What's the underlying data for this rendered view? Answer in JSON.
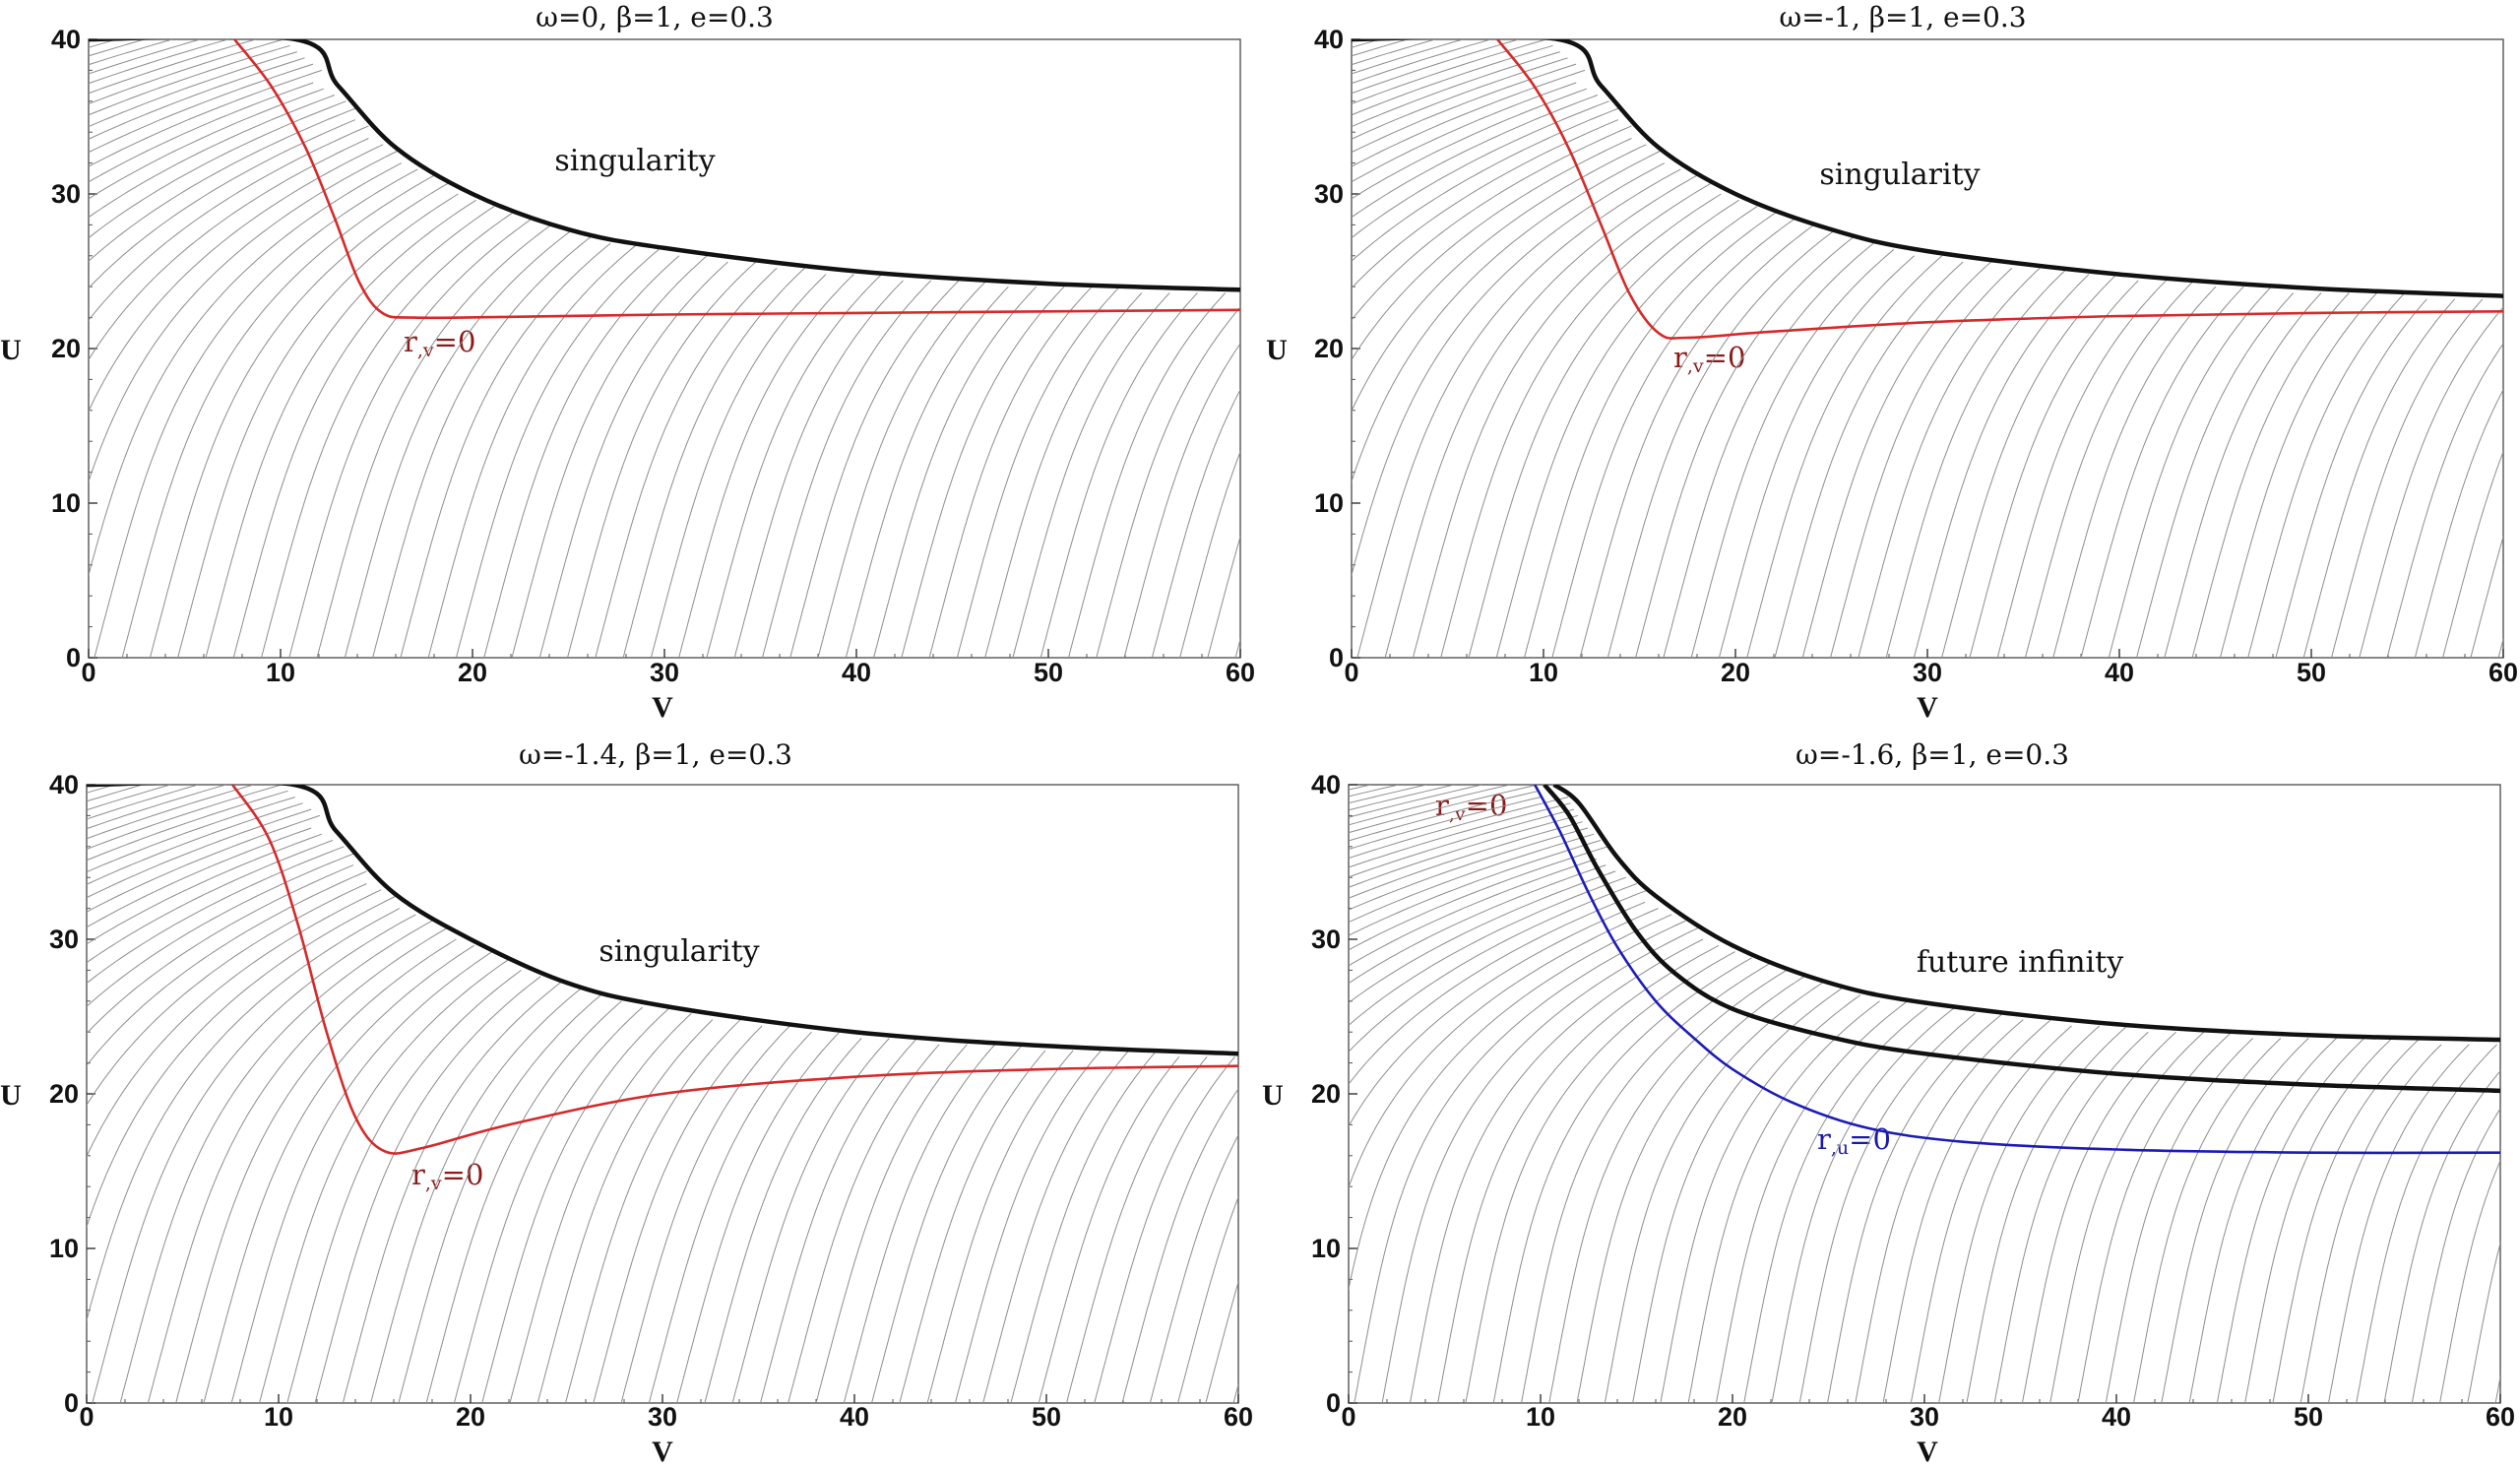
{
  "chart_data": [
    {
      "type": "line",
      "title": "ω=0,   β=1,   e=0.3",
      "xlabel": "V",
      "ylabel": "U",
      "xlim": [
        0,
        60
      ],
      "ylim": [
        0,
        40
      ],
      "xticks": [
        "0",
        "10",
        "20",
        "30",
        "40",
        "50",
        "60"
      ],
      "yticks": [
        "0",
        "10",
        "20",
        "30",
        "40"
      ],
      "region_label": "singularity",
      "curve_labels": [
        {
          "base": "r",
          "sub": ",v",
          "rest": "=0",
          "color": "#8b1a1a"
        }
      ],
      "series": [
        {
          "name": "r,v=0",
          "color": "#d42a2a",
          "points": [
            [
              7.6,
              40
            ],
            [
              9.5,
              37
            ],
            [
              11.3,
              33
            ],
            [
              12.8,
              28.5
            ],
            [
              14.1,
              24.3
            ],
            [
              15.3,
              22.3
            ],
            [
              17,
              22.0
            ],
            [
              22,
              22.05
            ],
            [
              30,
              22.2
            ],
            [
              40,
              22.3
            ],
            [
              50,
              22.4
            ],
            [
              60,
              22.5
            ]
          ]
        },
        {
          "name": "singularity boundary",
          "color": "#111111",
          "points": [
            [
              0,
              40
            ],
            [
              10.8,
              40
            ],
            [
              13,
              37
            ],
            [
              16,
              33
            ],
            [
              20,
              30
            ],
            [
              25,
              27.7
            ],
            [
              30,
              26.5
            ],
            [
              40,
              25
            ],
            [
              50,
              24.2
            ],
            [
              60,
              23.8
            ]
          ]
        }
      ]
    },
    {
      "type": "line",
      "title": "ω=-1,   β=1,   e=0.3",
      "xlabel": "V",
      "ylabel": "U",
      "xlim": [
        0,
        60
      ],
      "ylim": [
        0,
        40
      ],
      "xticks": [
        "0",
        "10",
        "20",
        "30",
        "40",
        "50",
        "60"
      ],
      "yticks": [
        "0",
        "10",
        "20",
        "30",
        "40"
      ],
      "region_label": "singularity",
      "curve_labels": [
        {
          "base": "r",
          "sub": ",v",
          "rest": "=0",
          "color": "#8b1a1a"
        }
      ],
      "series": [
        {
          "name": "r,v=0",
          "color": "#d42a2a",
          "points": [
            [
              7.6,
              40
            ],
            [
              9.5,
              37
            ],
            [
              11.3,
              33
            ],
            [
              13,
              28
            ],
            [
              14.5,
              23.5
            ],
            [
              16,
              21
            ],
            [
              17.5,
              20.7
            ],
            [
              22,
              21.1
            ],
            [
              30,
              21.7
            ],
            [
              40,
              22.1
            ],
            [
              50,
              22.3
            ],
            [
              60,
              22.4
            ]
          ]
        },
        {
          "name": "singularity boundary",
          "color": "#111111",
          "points": [
            [
              0,
              40
            ],
            [
              10.8,
              40
            ],
            [
              13,
              37
            ],
            [
              16,
              33
            ],
            [
              20,
              30
            ],
            [
              25,
              27.7
            ],
            [
              30,
              26.3
            ],
            [
              40,
              24.8
            ],
            [
              50,
              23.9
            ],
            [
              60,
              23.4
            ]
          ]
        }
      ]
    },
    {
      "type": "line",
      "title": "ω=-1.4,   β=1,   e=0.3",
      "xlabel": "V",
      "ylabel": "U",
      "xlim": [
        0,
        60
      ],
      "ylim": [
        0,
        40
      ],
      "xticks": [
        "0",
        "10",
        "20",
        "30",
        "40",
        "50",
        "60"
      ],
      "yticks": [
        "0",
        "10",
        "20",
        "30",
        "40"
      ],
      "region_label": "singularity",
      "curve_labels": [
        {
          "base": "r",
          "sub": ",v",
          "rest": "=0",
          "color": "#8b1a1a"
        }
      ],
      "series": [
        {
          "name": "r,v=0",
          "color": "#d42a2a",
          "points": [
            [
              7.6,
              40
            ],
            [
              9.5,
              36.5
            ],
            [
              11,
              31
            ],
            [
              12.5,
              24
            ],
            [
              14,
              18.5
            ],
            [
              15.5,
              16.3
            ],
            [
              17.5,
              16.5
            ],
            [
              22,
              18
            ],
            [
              30,
              20
            ],
            [
              40,
              21.1
            ],
            [
              50,
              21.6
            ],
            [
              60,
              21.8
            ]
          ]
        },
        {
          "name": "singularity boundary",
          "color": "#111111",
          "points": [
            [
              0,
              40
            ],
            [
              10.8,
              40
            ],
            [
              13,
              37
            ],
            [
              16,
              33
            ],
            [
              20,
              30
            ],
            [
              25,
              27.2
            ],
            [
              30,
              25.7
            ],
            [
              40,
              24
            ],
            [
              50,
              23.1
            ],
            [
              60,
              22.6
            ]
          ]
        }
      ]
    },
    {
      "type": "line",
      "title": "ω=-1.6,   β=1,   e=0.3",
      "xlabel": "V",
      "ylabel": "U",
      "xlim": [
        0,
        60
      ],
      "ylim": [
        0,
        40
      ],
      "xticks": [
        "0",
        "10",
        "20",
        "30",
        "40",
        "50",
        "60"
      ],
      "yticks": [
        "0",
        "10",
        "20",
        "30",
        "40"
      ],
      "region_label": "future infinity",
      "curve_labels": [
        {
          "base": "r",
          "sub": ",v",
          "rest": "=0",
          "color": "#8b1a1a"
        },
        {
          "base": "r",
          "sub": ",u",
          "rest": "=0",
          "color": "#1a1aa6"
        }
      ],
      "series": [
        {
          "name": "r,u=0",
          "color": "#1c1cb5",
          "points": [
            [
              9.7,
              40
            ],
            [
              11,
              37
            ],
            [
              12.5,
              33
            ],
            [
              14,
              29.5
            ],
            [
              16,
              26
            ],
            [
              18,
              23.6
            ],
            [
              20,
              21.6
            ],
            [
              23,
              19.5
            ],
            [
              27,
              17.8
            ],
            [
              32,
              16.9
            ],
            [
              40,
              16.4
            ],
            [
              50,
              16.2
            ],
            [
              60,
              16.2
            ]
          ]
        },
        {
          "name": "future infinity boundary",
          "color": "#111111",
          "points": [
            [
              10.7,
              40
            ],
            [
              12,
              38.8
            ],
            [
              14,
              35.3
            ],
            [
              16,
              32.8
            ],
            [
              20,
              29.6
            ],
            [
              25,
              27.2
            ],
            [
              30,
              25.9
            ],
            [
              40,
              24.5
            ],
            [
              50,
              23.8
            ],
            [
              60,
              23.5
            ]
          ]
        },
        {
          "name": "horizon band",
          "color": "#111111",
          "points": [
            [
              10.2,
              40
            ],
            [
              11.5,
              38
            ],
            [
              13,
              34.5
            ],
            [
              15,
              30.5
            ],
            [
              17,
              27.8
            ],
            [
              20,
              25.5
            ],
            [
              25,
              23.7
            ],
            [
              30,
              22.6
            ],
            [
              40,
              21.3
            ],
            [
              50,
              20.6
            ],
            [
              60,
              20.2
            ]
          ]
        }
      ]
    }
  ]
}
